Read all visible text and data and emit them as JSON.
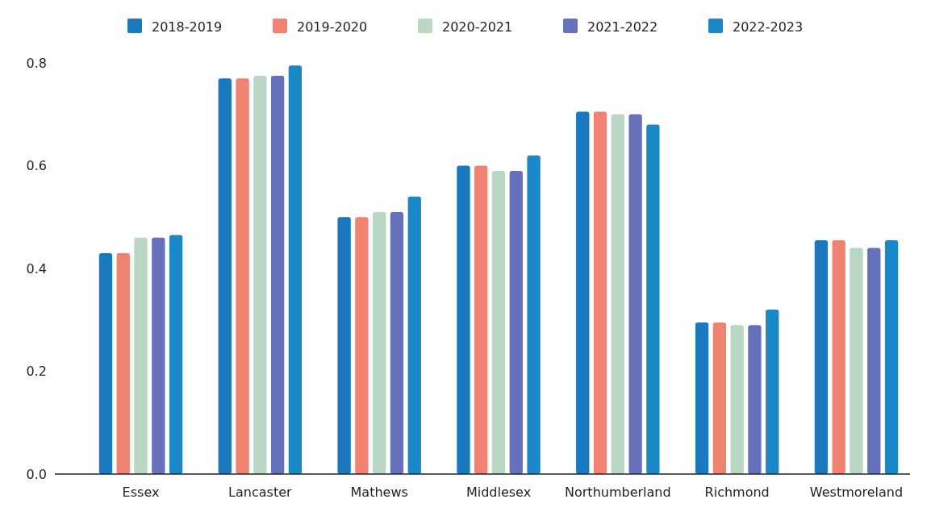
{
  "chart_data": {
    "type": "bar",
    "categories": [
      "Essex",
      "Lancaster",
      "Mathews",
      "Middlesex",
      "Northumberland",
      "Richmond",
      "Westmoreland"
    ],
    "series": [
      {
        "name": "2018-2019",
        "color": "#1a78be",
        "values": [
          0.43,
          0.77,
          0.5,
          0.6,
          0.705,
          0.295,
          0.455
        ]
      },
      {
        "name": "2019-2020",
        "color": "#f08272",
        "values": [
          0.43,
          0.77,
          0.5,
          0.6,
          0.705,
          0.295,
          0.455
        ]
      },
      {
        "name": "2020-2021",
        "color": "#b9d7c2",
        "values": [
          0.46,
          0.775,
          0.51,
          0.59,
          0.7,
          0.29,
          0.44
        ]
      },
      {
        "name": "2021-2022",
        "color": "#6670bb",
        "values": [
          0.46,
          0.775,
          0.51,
          0.59,
          0.7,
          0.29,
          0.44
        ]
      },
      {
        "name": "2022-2023",
        "color": "#1a87c6",
        "values": [
          0.465,
          0.795,
          0.54,
          0.62,
          0.68,
          0.32,
          0.455
        ]
      }
    ],
    "ylim": [
      0,
      0.8
    ],
    "yticks": [
      {
        "value": 0,
        "label": "0.0"
      },
      {
        "value": 0.2,
        "label": "0.2"
      },
      {
        "value": 0.4,
        "label": "0.4"
      },
      {
        "value": 0.6,
        "label": "0.6"
      },
      {
        "value": 0.8,
        "label": "0.8"
      }
    ],
    "legend": "top",
    "grid": false
  }
}
